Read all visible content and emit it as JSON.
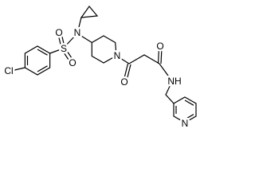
{
  "atoms": {
    "chlorine": "Cl",
    "sulfur": "S",
    "sulfonyl_oxygen_top": "O",
    "sulfonyl_oxygen_bottom": "O",
    "sulfonamide_nitrogen": "N",
    "piperidine_nitrogen": "N",
    "ketone_oxygen": "O",
    "amide_oxygen": "O",
    "amide_nitrogen": "NH",
    "pyridine_nitrogen": "N"
  }
}
